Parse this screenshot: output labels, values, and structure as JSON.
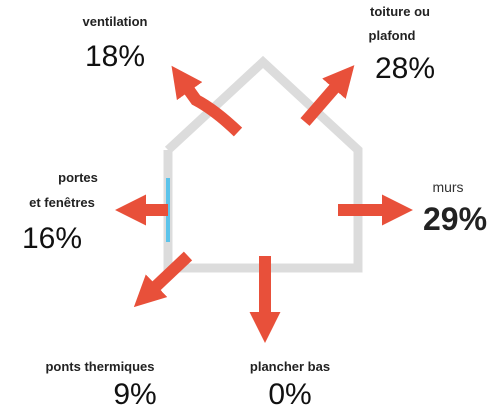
{
  "items": [
    {
      "label_lines": [
        "ventilation"
      ],
      "value": "18%"
    },
    {
      "label_lines": [
        "toiture ou",
        "plafond"
      ],
      "value": "28%"
    },
    {
      "label_lines": [
        "murs"
      ],
      "value": "29%"
    },
    {
      "label_lines": [
        "portes",
        "et fenêtres"
      ],
      "value": "16%"
    },
    {
      "label_lines": [
        "ponts thermiques"
      ],
      "value": "9%"
    },
    {
      "label_lines": [
        "plancher bas"
      ],
      "value": "0%"
    }
  ]
}
